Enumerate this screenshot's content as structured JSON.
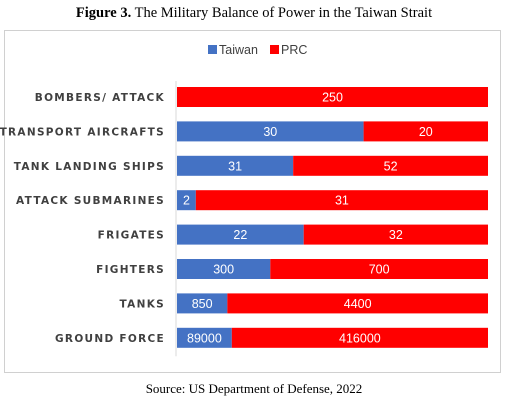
{
  "figure_label": "Figure 3.",
  "figure_title": "The Military Balance of Power in the Taiwan Strait",
  "source": "Source: US Department of Defense, 2022",
  "chart_data": {
    "type": "bar",
    "orientation": "horizontal",
    "stacked": "percent",
    "categories": [
      "BOMBERS/ ATTACK",
      "TRANSPORT AIRCRAFTS",
      "TANK LANDING SHIPS",
      "ATTACK SUBMARINES",
      "FRIGATES",
      "FIGHTERS",
      "TANKS",
      "GROUND FORCE"
    ],
    "series": [
      {
        "name": "Taiwan",
        "color": "#4472C4",
        "values": [
          0,
          30,
          31,
          2,
          22,
          300,
          850,
          89000
        ]
      },
      {
        "name": "PRC",
        "color": "#FF0000",
        "values": [
          250,
          20,
          52,
          31,
          32,
          700,
          4400,
          416000
        ]
      }
    ],
    "legend": "top-center",
    "grid": false
  }
}
